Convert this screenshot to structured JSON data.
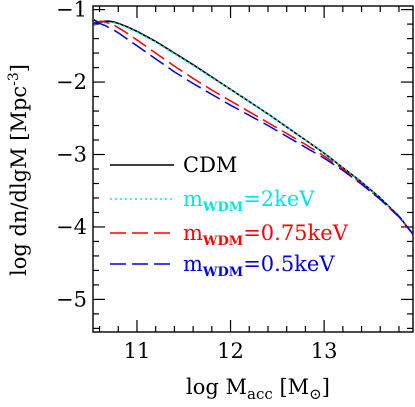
{
  "chart_data": {
    "type": "line",
    "title": "",
    "xlabel": "log M_acc [M_⊙]",
    "ylabel": "log dn/dlgM [Mpc⁻³]",
    "xlabel_parts": {
      "main": "log M",
      "sub": "acc",
      "bracket_open": " [M",
      "sun": "⊙",
      "bracket_close": "]"
    },
    "ylabel_parts": {
      "main": "log dn/dlgM [Mpc",
      "sup": "-3",
      "close": "]"
    },
    "xlim": [
      10.53,
      13.95
    ],
    "ylim": [
      -5.45,
      -0.95
    ],
    "xticks": [
      {
        "value": 11,
        "label": "11"
      },
      {
        "value": 12,
        "label": "12"
      },
      {
        "value": 13,
        "label": "13"
      }
    ],
    "yticks": [
      {
        "value": -1,
        "label": "−1"
      },
      {
        "value": -2,
        "label": "−2"
      },
      {
        "value": -3,
        "label": "−3"
      },
      {
        "value": -4,
        "label": "−4"
      },
      {
        "value": -5,
        "label": "−5"
      }
    ],
    "legend_position": "middle-left",
    "series": [
      {
        "name": "CDM",
        "legend": {
          "main": "CDM",
          "sub": "",
          "rest": ""
        },
        "color": "#000000",
        "dash": "",
        "x": [
          10.54,
          10.58,
          10.62,
          10.66,
          10.7,
          10.75,
          10.8,
          10.9,
          11.0,
          11.2,
          11.4,
          11.6,
          11.8,
          12.0,
          12.2,
          12.4,
          12.6,
          12.8,
          13.0,
          13.2,
          13.4,
          13.6,
          13.8,
          13.95
        ],
        "y": [
          -1.14,
          -1.17,
          -1.17,
          -1.16,
          -1.16,
          -1.17,
          -1.19,
          -1.24,
          -1.3,
          -1.44,
          -1.6,
          -1.76,
          -1.93,
          -2.1,
          -2.27,
          -2.44,
          -2.62,
          -2.8,
          -2.98,
          -3.18,
          -3.38,
          -3.6,
          -3.85,
          -4.1
        ]
      },
      {
        "name": "m_WDM=2keV",
        "legend": {
          "main": "m",
          "sub": "WDM",
          "rest": "=2keV"
        },
        "color": "#00e5e5",
        "dash": "2,3",
        "x": [
          10.54,
          10.58,
          10.62,
          10.66,
          10.7,
          10.75,
          10.8,
          10.9,
          11.0,
          11.2,
          11.4,
          11.6,
          11.8,
          12.0,
          12.2,
          12.4,
          12.6,
          12.8,
          13.0,
          13.2,
          13.4,
          13.6,
          13.8,
          13.95
        ],
        "y": [
          -1.22,
          -1.2,
          -1.19,
          -1.18,
          -1.18,
          -1.18,
          -1.2,
          -1.25,
          -1.31,
          -1.45,
          -1.61,
          -1.77,
          -1.94,
          -2.1,
          -2.27,
          -2.44,
          -2.62,
          -2.8,
          -2.98,
          -3.18,
          -3.38,
          -3.6,
          -3.85,
          -4.1
        ]
      },
      {
        "name": "m_WDM=0.75keV",
        "legend": {
          "main": "m",
          "sub": "WDM",
          "rest": "=0.75keV"
        },
        "color": "#ff0000",
        "dash": "16,6",
        "x": [
          10.54,
          10.58,
          10.62,
          10.66,
          10.7,
          10.75,
          10.8,
          10.9,
          11.0,
          11.2,
          11.4,
          11.6,
          11.8,
          12.0,
          12.2,
          12.4,
          12.6,
          12.8,
          13.0,
          13.2,
          13.4,
          13.6,
          13.8,
          13.95
        ],
        "y": [
          -1.2,
          -1.17,
          -1.16,
          -1.17,
          -1.19,
          -1.21,
          -1.25,
          -1.33,
          -1.42,
          -1.6,
          -1.78,
          -1.95,
          -2.11,
          -2.26,
          -2.41,
          -2.56,
          -2.71,
          -2.86,
          -3.02,
          -3.2,
          -3.4,
          -3.62,
          -3.86,
          -4.1
        ]
      },
      {
        "name": "m_WDM=0.5keV",
        "legend": {
          "main": "m",
          "sub": "WDM",
          "rest": "=0.5keV"
        },
        "color": "#0000e0",
        "dash": "16,6",
        "x": [
          10.54,
          10.58,
          10.62,
          10.66,
          10.7,
          10.75,
          10.8,
          10.9,
          11.0,
          11.2,
          11.4,
          11.6,
          11.8,
          12.0,
          12.2,
          12.4,
          12.6,
          12.8,
          13.0,
          13.2,
          13.4,
          13.6,
          13.8,
          13.95
        ],
        "y": [
          -1.18,
          -1.18,
          -1.2,
          -1.22,
          -1.25,
          -1.28,
          -1.32,
          -1.41,
          -1.5,
          -1.68,
          -1.86,
          -2.02,
          -2.17,
          -2.32,
          -2.46,
          -2.6,
          -2.75,
          -2.9,
          -3.05,
          -3.22,
          -3.41,
          -3.62,
          -3.86,
          -4.1
        ]
      }
    ]
  }
}
